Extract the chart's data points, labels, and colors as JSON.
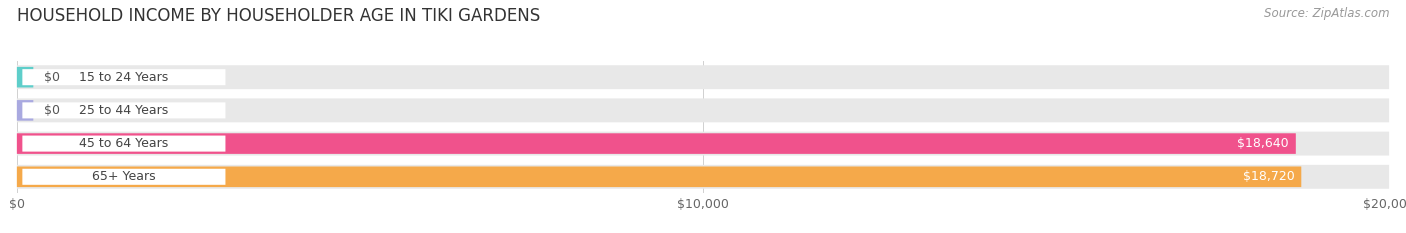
{
  "title": "HOUSEHOLD INCOME BY HOUSEHOLDER AGE IN TIKI GARDENS",
  "source": "Source: ZipAtlas.com",
  "categories": [
    "15 to 24 Years",
    "25 to 44 Years",
    "45 to 64 Years",
    "65+ Years"
  ],
  "values": [
    0,
    0,
    18640,
    18720
  ],
  "bar_colors": [
    "#5ececa",
    "#a9a9e0",
    "#f0528c",
    "#f5a94a"
  ],
  "background_color": "#ffffff",
  "plot_bg_color": "#ffffff",
  "row_bg_color": "#e8e8e8",
  "xlim": [
    0,
    20000
  ],
  "xtick_labels": [
    "$0",
    "$10,000",
    "$20,000"
  ],
  "title_fontsize": 12,
  "source_fontsize": 8.5,
  "bar_fontsize": 9
}
